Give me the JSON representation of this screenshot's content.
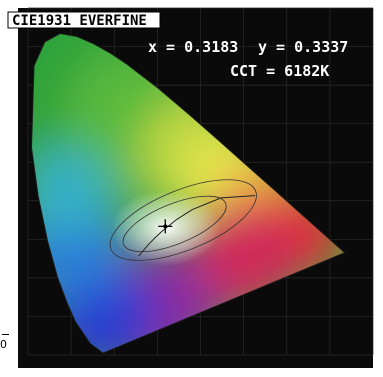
{
  "chart_data": {
    "type": "scatter",
    "title": "CIE1931 EVERFINE",
    "xlabel": "",
    "ylabel": "",
    "xlim": [
      0,
      0.8
    ],
    "ylim": [
      0,
      0.9
    ],
    "grid": true,
    "measurement": {
      "x": 0.3183,
      "y": 0.3337,
      "cct_k": 6182,
      "x_label": "x = 0.3183",
      "y_label": "y = 0.3337",
      "cct_label": "CCT = 6182K"
    },
    "gamut_boundary": [
      [
        0.1741,
        0.005
      ],
      [
        0.144,
        0.0297
      ],
      [
        0.1096,
        0.0868
      ],
      [
        0.0913,
        0.1327
      ],
      [
        0.0687,
        0.2007
      ],
      [
        0.0454,
        0.295
      ],
      [
        0.0235,
        0.4127
      ],
      [
        0.0082,
        0.5384
      ],
      [
        0.0139,
        0.7502
      ],
      [
        0.0389,
        0.812
      ],
      [
        0.0743,
        0.8338
      ],
      [
        0.1142,
        0.8262
      ],
      [
        0.1547,
        0.8059
      ],
      [
        0.1929,
        0.7816
      ],
      [
        0.2296,
        0.7543
      ],
      [
        0.3016,
        0.6923
      ],
      [
        0.3731,
        0.6245
      ],
      [
        0.4441,
        0.5547
      ],
      [
        0.5125,
        0.4866
      ],
      [
        0.5752,
        0.4242
      ],
      [
        0.627,
        0.3725
      ],
      [
        0.6658,
        0.334
      ],
      [
        0.6915,
        0.3083
      ],
      [
        0.7347,
        0.2653
      ]
    ],
    "planckian_locus": [
      [
        0.5266,
        0.4133
      ],
      [
        0.4476,
        0.4074
      ],
      [
        0.3805,
        0.3768
      ],
      [
        0.3451,
        0.3516
      ],
      [
        0.3135,
        0.3236
      ],
      [
        0.2952,
        0.3048
      ],
      [
        0.2807,
        0.2883
      ],
      [
        0.2565,
        0.2565
      ]
    ]
  },
  "side_label": "0",
  "colors": {
    "background": "#0a0a0a",
    "title_box": "#ffffff",
    "text": "#ffffff",
    "marker": "#000000",
    "outer": "#ffffff"
  }
}
